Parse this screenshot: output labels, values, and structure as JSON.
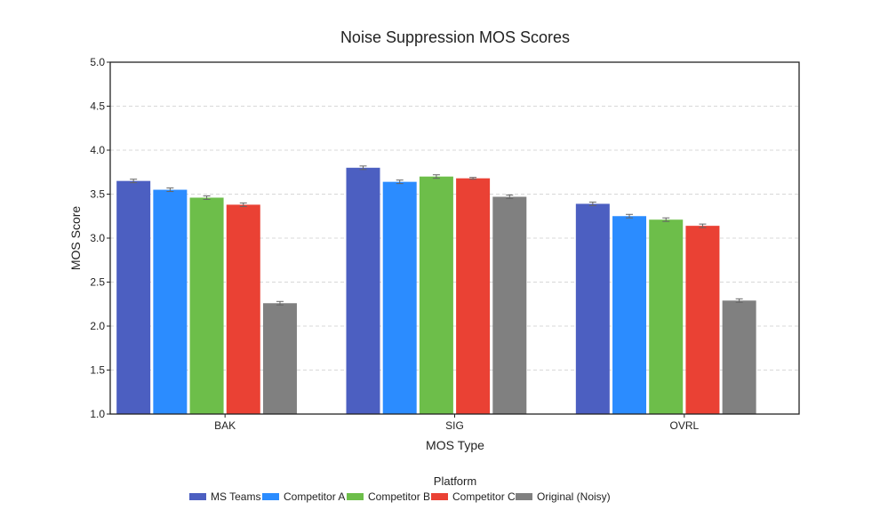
{
  "chart_data": {
    "type": "bar",
    "title": "Noise Suppression MOS Scores",
    "xlabel": "MOS Type",
    "ylabel": "MOS Score",
    "ylim": [
      1.0,
      5.0
    ],
    "yticks": [
      "1.0",
      "1.5",
      "2.0",
      "2.5",
      "3.0",
      "3.5",
      "4.0",
      "4.5",
      "5.0"
    ],
    "grid": true,
    "categories": [
      "BAK",
      "SIG",
      "OVRL"
    ],
    "legend_title": "Platform",
    "legend_position": "bottom-center",
    "series": [
      {
        "name": "MS Teams",
        "color": "#4c5fc1",
        "values": [
          3.65,
          3.8,
          3.39
        ],
        "error": [
          0.02,
          0.02,
          0.02
        ]
      },
      {
        "name": "Competitor A",
        "color": "#2b8cff",
        "values": [
          3.55,
          3.64,
          3.25
        ],
        "error": [
          0.02,
          0.02,
          0.02
        ]
      },
      {
        "name": "Competitor B",
        "color": "#6dbe4a",
        "values": [
          3.46,
          3.7,
          3.21
        ],
        "error": [
          0.02,
          0.02,
          0.02
        ]
      },
      {
        "name": "Competitor C",
        "color": "#ea4134",
        "values": [
          3.38,
          3.68,
          3.14
        ],
        "error": [
          0.02,
          0.01,
          0.02
        ]
      },
      {
        "name": "Original (Noisy)",
        "color": "#808080",
        "values": [
          2.26,
          3.47,
          2.29
        ],
        "error": [
          0.02,
          0.02,
          0.02
        ]
      }
    ]
  }
}
